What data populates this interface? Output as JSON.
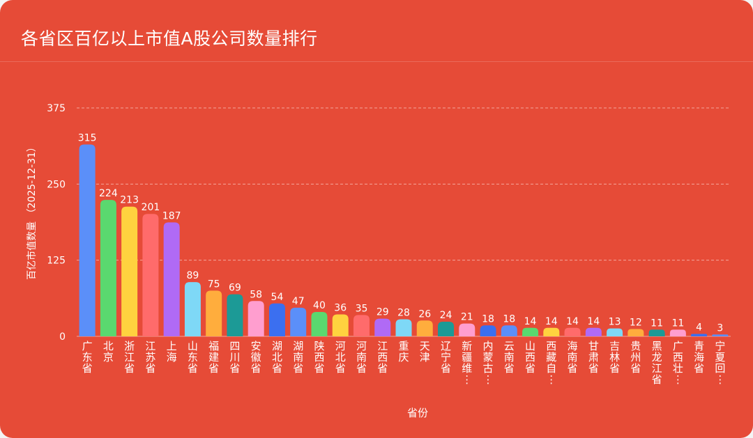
{
  "title": "各省区百亿以上市值A股公司数量排行",
  "colors": {
    "background": "#e64b37",
    "text": "#ffffff",
    "grid": "#f3a79c"
  },
  "chart_data": {
    "type": "bar",
    "xlabel": "省份",
    "ylabel": "百亿市值数量 （2025-12-31）",
    "ylim": [
      0,
      375
    ],
    "yticks": [
      0,
      125,
      250,
      375
    ],
    "grid": true,
    "legend": "none",
    "categories": [
      "广东省",
      "北京",
      "浙江省",
      "江苏省",
      "上海",
      "山东省",
      "福建省",
      "四川省",
      "安徽省",
      "湖北省",
      "湖南省",
      "陕西省",
      "河北省",
      "河南省",
      "江西省",
      "重庆",
      "天津",
      "辽宁省",
      "新疆维...",
      "内蒙古...",
      "云南省",
      "山西省",
      "西藏自...",
      "海南省",
      "甘肃省",
      "吉林省",
      "贵州省",
      "黑龙江省",
      "广西壮...",
      "青海省",
      "宁夏回..."
    ],
    "values": [
      315,
      224,
      213,
      201,
      187,
      89,
      75,
      69,
      58,
      54,
      47,
      40,
      36,
      35,
      29,
      28,
      26,
      24,
      21,
      18,
      18,
      14,
      14,
      14,
      14,
      13,
      12,
      11,
      11,
      4,
      3
    ],
    "bar_colors": [
      "#5b8ff9",
      "#5ad86f",
      "#ffd23f",
      "#ff6b6b",
      "#b06af5",
      "#7ed8f6",
      "#ffad3d",
      "#1c9a96",
      "#ff9ecf",
      "#3b6ff0",
      "#5b8ff9",
      "#5ad86f",
      "#ffd23f",
      "#ff6b6b",
      "#b06af5",
      "#7ed8f6",
      "#ffad3d",
      "#1c9a96",
      "#ff9ecf",
      "#3b6ff0",
      "#5b8ff9",
      "#5ad86f",
      "#ffd23f",
      "#ff6b6b",
      "#b06af5",
      "#7ed8f6",
      "#ffad3d",
      "#1c9a96",
      "#ff9ecf",
      "#3b6ff0",
      "#5b8ff9"
    ]
  }
}
